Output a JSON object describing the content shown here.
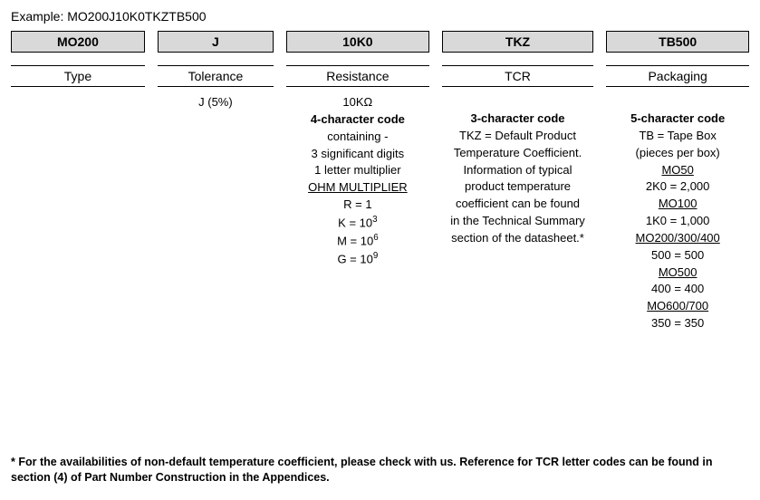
{
  "example_label": "Example: MO200J10K0TKZTB500",
  "columns": [
    {
      "header": "MO200",
      "sublabel": "Type",
      "body_html": ""
    },
    {
      "header": "J",
      "sublabel": "Tolerance",
      "body_html": "<p>J (5%)</p>"
    },
    {
      "header": "10K0",
      "sublabel": "Resistance",
      "body_html": "<p>10KΩ</p><p class='bold'>4-character code</p><p>containing -</p><p>3 significant digits</p><p>1 letter multiplier</p><p class='mt ul'>OHM MULTIPLIER</p><p>R = 1</p><p>K = 10<sup>3</sup></p><p>M = 10<sup>6</sup></p><p>G = 10<sup>9</sup></p>"
    },
    {
      "header": "TKZ",
      "sublabel": "TCR",
      "body_html": "<p class='bold' style='margin-top:18px'>3-character code</p><p class='mt'>TKZ = Default Product<br>Temperature Coefficient.</p><p class='mt'>Information of typical<br>product temperature<br>coefficient can be found<br>in the Technical Summary<br>section of the datasheet.*</p>"
    },
    {
      "header": "TB500",
      "sublabel": "Packaging",
      "body_html": "<p class='bold' style='margin-top:18px'>5-character code</p><p class='mt'>TB = Tape Box</p><p class='mt'>(pieces per box)</p><p class='ul'>MO50</p><p>2K0 = 2,000</p><p class='mt ul'>MO100</p><p>1K0 = 1,000</p><p class='mt ul'>MO200/300/400</p><p>500 = 500</p><p class='mt ul'>MO500</p><p>400 = 400</p><p class='mt ul'>MO600/700</p><p>350 = 350</p>"
    }
  ],
  "footnote": "* For the availabilities of non-default temperature coefficient, please check with us. Reference for TCR letter codes can be found in section (4) of Part Number Construction in the Appendices."
}
